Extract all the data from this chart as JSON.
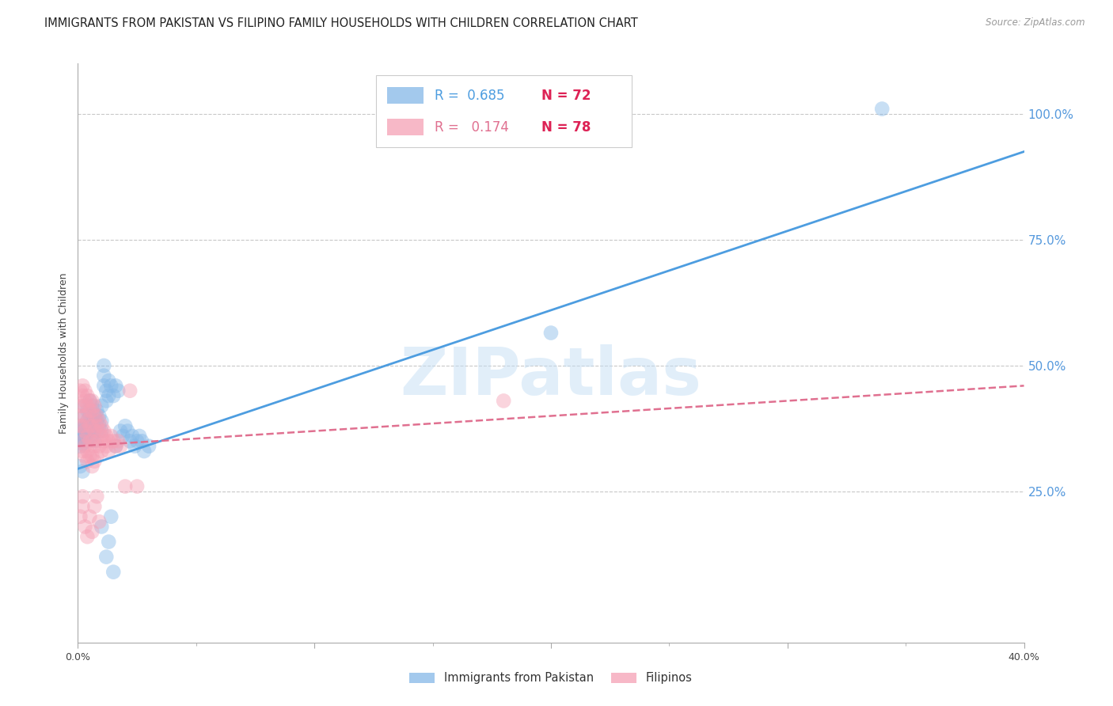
{
  "title": "IMMIGRANTS FROM PAKISTAN VS FILIPINO FAMILY HOUSEHOLDS WITH CHILDREN CORRELATION CHART",
  "source": "Source: ZipAtlas.com",
  "ylabel": "Family Households with Children",
  "ytick_labels": [
    "100.0%",
    "75.0%",
    "50.0%",
    "25.0%"
  ],
  "ytick_values": [
    1.0,
    0.75,
    0.5,
    0.25
  ],
  "xlim": [
    0.0,
    0.4
  ],
  "ylim": [
    -0.05,
    1.1
  ],
  "watermark_text": "ZIPatlas",
  "legend_pk_R": "0.685",
  "legend_pk_N": "72",
  "legend_fl_R": "0.174",
  "legend_fl_N": "78",
  "pakistan_scatter": [
    [
      0.001,
      0.355
    ],
    [
      0.001,
      0.375
    ],
    [
      0.001,
      0.34
    ],
    [
      0.001,
      0.36
    ],
    [
      0.002,
      0.37
    ],
    [
      0.002,
      0.35
    ],
    [
      0.002,
      0.38
    ],
    [
      0.002,
      0.345
    ],
    [
      0.003,
      0.4
    ],
    [
      0.003,
      0.36
    ],
    [
      0.003,
      0.42
    ],
    [
      0.003,
      0.38
    ],
    [
      0.004,
      0.39
    ],
    [
      0.004,
      0.35
    ],
    [
      0.004,
      0.41
    ],
    [
      0.004,
      0.37
    ],
    [
      0.005,
      0.4
    ],
    [
      0.005,
      0.37
    ],
    [
      0.005,
      0.43
    ],
    [
      0.006,
      0.39
    ],
    [
      0.006,
      0.36
    ],
    [
      0.006,
      0.42
    ],
    [
      0.007,
      0.38
    ],
    [
      0.007,
      0.4
    ],
    [
      0.007,
      0.35
    ],
    [
      0.008,
      0.39
    ],
    [
      0.008,
      0.37
    ],
    [
      0.008,
      0.41
    ],
    [
      0.009,
      0.4
    ],
    [
      0.009,
      0.38
    ],
    [
      0.01,
      0.39
    ],
    [
      0.01,
      0.37
    ],
    [
      0.01,
      0.42
    ],
    [
      0.011,
      0.46
    ],
    [
      0.011,
      0.48
    ],
    [
      0.011,
      0.5
    ],
    [
      0.012,
      0.45
    ],
    [
      0.012,
      0.43
    ],
    [
      0.013,
      0.47
    ],
    [
      0.013,
      0.44
    ],
    [
      0.014,
      0.46
    ],
    [
      0.015,
      0.44
    ],
    [
      0.016,
      0.46
    ],
    [
      0.016,
      0.34
    ],
    [
      0.017,
      0.45
    ],
    [
      0.018,
      0.37
    ],
    [
      0.019,
      0.36
    ],
    [
      0.02,
      0.38
    ],
    [
      0.021,
      0.37
    ],
    [
      0.022,
      0.35
    ],
    [
      0.023,
      0.36
    ],
    [
      0.024,
      0.34
    ],
    [
      0.025,
      0.35
    ],
    [
      0.026,
      0.36
    ],
    [
      0.027,
      0.35
    ],
    [
      0.028,
      0.33
    ],
    [
      0.03,
      0.34
    ],
    [
      0.012,
      0.12
    ],
    [
      0.013,
      0.15
    ],
    [
      0.015,
      0.09
    ],
    [
      0.2,
      0.565
    ],
    [
      0.34,
      1.01
    ],
    [
      0.001,
      0.3
    ],
    [
      0.002,
      0.29
    ],
    [
      0.01,
      0.18
    ],
    [
      0.014,
      0.2
    ]
  ],
  "filipino_scatter": [
    [
      0.001,
      0.42
    ],
    [
      0.001,
      0.45
    ],
    [
      0.001,
      0.4
    ],
    [
      0.001,
      0.38
    ],
    [
      0.002,
      0.46
    ],
    [
      0.002,
      0.44
    ],
    [
      0.002,
      0.42
    ],
    [
      0.002,
      0.38
    ],
    [
      0.002,
      0.35
    ],
    [
      0.002,
      0.33
    ],
    [
      0.003,
      0.45
    ],
    [
      0.003,
      0.43
    ],
    [
      0.003,
      0.4
    ],
    [
      0.003,
      0.37
    ],
    [
      0.003,
      0.34
    ],
    [
      0.003,
      0.32
    ],
    [
      0.004,
      0.44
    ],
    [
      0.004,
      0.42
    ],
    [
      0.004,
      0.39
    ],
    [
      0.004,
      0.36
    ],
    [
      0.004,
      0.33
    ],
    [
      0.004,
      0.31
    ],
    [
      0.005,
      0.43
    ],
    [
      0.005,
      0.41
    ],
    [
      0.005,
      0.38
    ],
    [
      0.005,
      0.35
    ],
    [
      0.005,
      0.32
    ],
    [
      0.006,
      0.43
    ],
    [
      0.006,
      0.41
    ],
    [
      0.006,
      0.38
    ],
    [
      0.006,
      0.35
    ],
    [
      0.006,
      0.32
    ],
    [
      0.006,
      0.3
    ],
    [
      0.007,
      0.42
    ],
    [
      0.007,
      0.4
    ],
    [
      0.007,
      0.37
    ],
    [
      0.007,
      0.34
    ],
    [
      0.007,
      0.31
    ],
    [
      0.008,
      0.4
    ],
    [
      0.008,
      0.38
    ],
    [
      0.008,
      0.35
    ],
    [
      0.008,
      0.32
    ],
    [
      0.009,
      0.39
    ],
    [
      0.009,
      0.37
    ],
    [
      0.009,
      0.34
    ],
    [
      0.01,
      0.38
    ],
    [
      0.01,
      0.36
    ],
    [
      0.01,
      0.33
    ],
    [
      0.011,
      0.37
    ],
    [
      0.011,
      0.35
    ],
    [
      0.012,
      0.36
    ],
    [
      0.012,
      0.34
    ],
    [
      0.013,
      0.35
    ],
    [
      0.013,
      0.33
    ],
    [
      0.014,
      0.36
    ],
    [
      0.015,
      0.35
    ],
    [
      0.016,
      0.34
    ],
    [
      0.017,
      0.35
    ],
    [
      0.018,
      0.34
    ],
    [
      0.001,
      0.2
    ],
    [
      0.002,
      0.22
    ],
    [
      0.002,
      0.24
    ],
    [
      0.003,
      0.18
    ],
    [
      0.004,
      0.16
    ],
    [
      0.005,
      0.2
    ],
    [
      0.006,
      0.17
    ],
    [
      0.007,
      0.22
    ],
    [
      0.008,
      0.24
    ],
    [
      0.009,
      0.19
    ],
    [
      0.02,
      0.26
    ],
    [
      0.022,
      0.45
    ],
    [
      0.025,
      0.26
    ],
    [
      0.18,
      0.43
    ]
  ],
  "pakistan_line": [
    [
      0.0,
      0.295
    ],
    [
      0.4,
      0.925
    ]
  ],
  "filipino_line": [
    [
      0.0,
      0.34
    ],
    [
      0.4,
      0.46
    ]
  ],
  "scatter_size": 180,
  "scatter_alpha": 0.45,
  "pakistan_color": "#85b8e8",
  "filipino_color": "#f5a0b5",
  "pakistan_line_color": "#4d9de0",
  "filipino_line_color": "#e07090",
  "grid_color": "#c8c8c8",
  "background_color": "#ffffff",
  "title_fontsize": 10.5,
  "axis_label_fontsize": 9,
  "tick_fontsize": 9,
  "legend_fontsize": 12
}
